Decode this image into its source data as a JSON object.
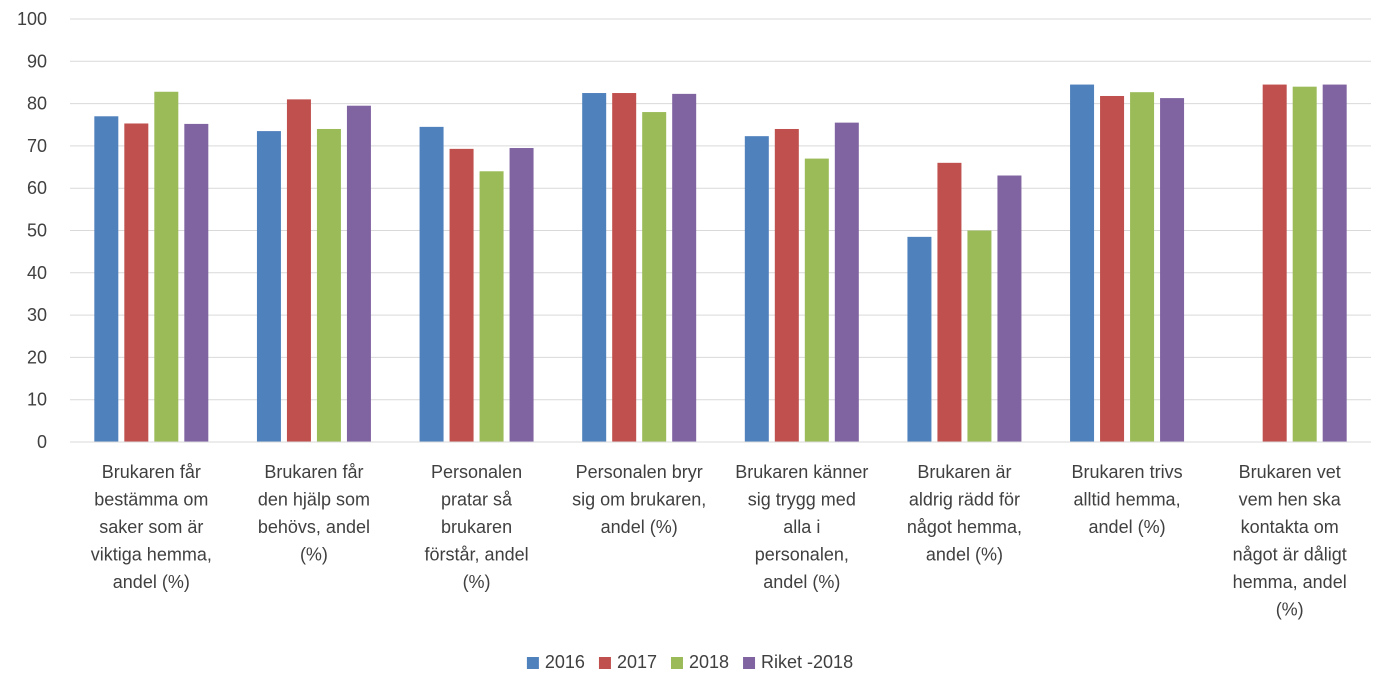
{
  "chart_data": {
    "type": "bar",
    "title": "",
    "xlabel": "",
    "ylabel": "",
    "ylim": [
      0,
      100
    ],
    "yticks": [
      0,
      10,
      20,
      30,
      40,
      50,
      60,
      70,
      80,
      90,
      100
    ],
    "grid": true,
    "legend_position": "bottom",
    "categories": [
      [
        "Brukaren får",
        "bestämma om",
        "saker som är",
        "viktiga hemma,",
        "andel (%)"
      ],
      [
        "Brukaren får",
        "den hjälp som",
        "behövs, andel",
        "(%)"
      ],
      [
        "Personalen",
        "pratar så",
        "brukaren",
        "förstår, andel",
        "(%)"
      ],
      [
        "Personalen bryr",
        "sig om brukaren,",
        "andel (%)"
      ],
      [
        "Brukaren känner",
        "sig trygg med",
        "alla i",
        "personalen,",
        "andel (%)"
      ],
      [
        "Brukaren är",
        "aldrig rädd för",
        "något hemma,",
        "andel (%)"
      ],
      [
        "Brukaren trivs",
        "alltid hemma,",
        "andel (%)"
      ],
      [
        "Brukaren vet",
        "vem hen ska",
        "kontakta om",
        "något är dåligt",
        "hemma, andel",
        "(%)"
      ]
    ],
    "series": [
      {
        "name": "2016",
        "color": "#4f81bd",
        "values": [
          77,
          73.5,
          74.5,
          82.5,
          72.3,
          48.5,
          84.5,
          null
        ]
      },
      {
        "name": "2017",
        "color": "#c0504d",
        "values": [
          75.3,
          81,
          69.3,
          82.5,
          74,
          66,
          81.8,
          84.5
        ]
      },
      {
        "name": "2018",
        "color": "#9bbb59",
        "values": [
          82.8,
          74,
          64,
          78,
          67,
          50,
          82.7,
          84
        ]
      },
      {
        "name": "Riket -2018",
        "color": "#8064a2",
        "values": [
          75.2,
          79.5,
          69.5,
          82.3,
          75.5,
          63,
          81.3,
          84.5
        ]
      }
    ]
  }
}
